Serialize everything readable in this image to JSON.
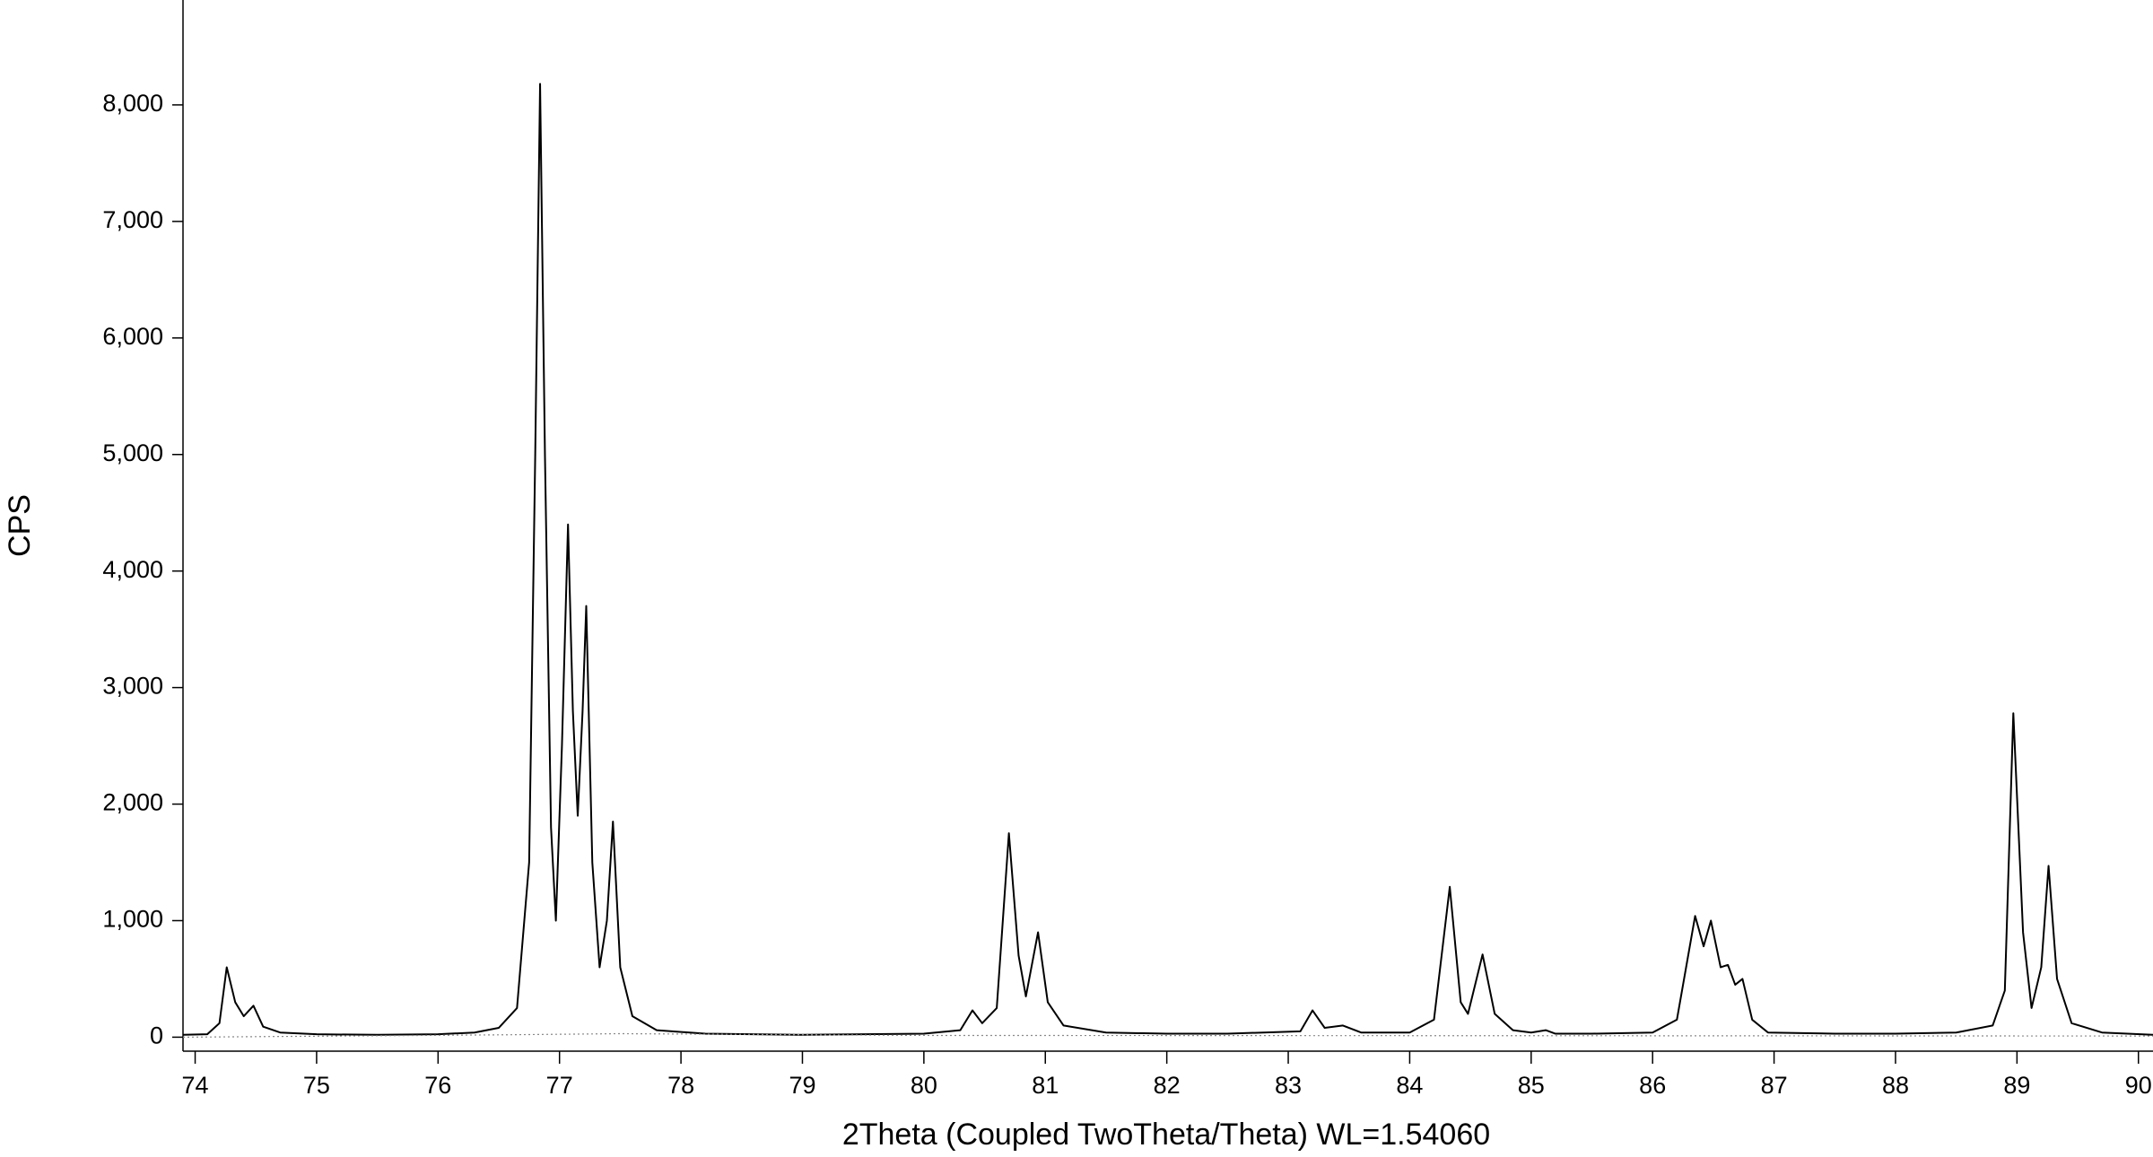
{
  "chart_data": {
    "type": "line",
    "x_label": "2Theta (Coupled TwoTheta/Theta) WL=1.54060",
    "y_label": "CPS",
    "xlim": [
      73.9,
      90.12
    ],
    "ylim": [
      -120,
      8900
    ],
    "xticks": [
      74,
      75,
      76,
      77,
      78,
      79,
      80,
      81,
      82,
      83,
      84,
      85,
      86,
      87,
      88,
      89,
      90
    ],
    "yticks": [
      0,
      {
        "value": 1000,
        "label": "1,000"
      },
      {
        "value": 2000,
        "label": "2,000"
      },
      {
        "value": 3000,
        "label": "3,000"
      },
      {
        "value": 4000,
        "label": "4,000"
      },
      {
        "value": 5000,
        "label": "5,000"
      },
      {
        "value": 6000,
        "label": "6,000"
      },
      {
        "value": 7000,
        "label": "7,000"
      },
      {
        "value": 8000,
        "label": "8,000"
      }
    ],
    "series": [
      {
        "color": "#000000",
        "x": [
          73.9,
          74.1,
          74.2,
          74.26,
          74.33,
          74.4,
          74.48,
          74.56,
          74.7,
          75,
          75.5,
          76,
          76.3,
          76.5,
          76.65,
          76.75,
          76.8,
          76.84,
          76.88,
          76.93,
          76.97,
          77.02,
          77.07,
          77.11,
          77.15,
          77.19,
          77.22,
          77.27,
          77.33,
          77.39,
          77.44,
          77.5,
          77.6,
          77.8,
          78.2,
          79,
          80,
          80.3,
          80.4,
          80.48,
          80.6,
          80.7,
          80.78,
          80.84,
          80.94,
          81.02,
          81.15,
          81.5,
          82,
          82.5,
          83.1,
          83.2,
          83.3,
          83.45,
          83.6,
          84,
          84.2,
          84.33,
          84.42,
          84.48,
          84.6,
          84.7,
          84.85,
          85,
          85.12,
          85.2,
          85.5,
          86,
          86.2,
          86.35,
          86.42,
          86.48,
          86.56,
          86.62,
          86.68,
          86.74,
          86.82,
          86.95,
          87.5,
          88,
          88.5,
          88.8,
          88.9,
          88.97,
          89.05,
          89.12,
          89.2,
          89.26,
          89.33,
          89.45,
          89.7,
          90.12
        ],
        "values": [
          20,
          25,
          120,
          600,
          300,
          180,
          270,
          90,
          40,
          25,
          20,
          25,
          40,
          80,
          250,
          1500,
          5000,
          8180,
          5000,
          1800,
          1000,
          2500,
          4400,
          2800,
          1900,
          2800,
          3700,
          1500,
          600,
          1000,
          1850,
          600,
          180,
          60,
          30,
          20,
          30,
          60,
          230,
          120,
          250,
          1750,
          700,
          350,
          900,
          300,
          100,
          40,
          30,
          30,
          50,
          230,
          80,
          100,
          40,
          40,
          150,
          1290,
          300,
          200,
          710,
          200,
          60,
          40,
          60,
          30,
          30,
          40,
          150,
          1040,
          780,
          1000,
          600,
          620,
          450,
          500,
          150,
          40,
          30,
          30,
          40,
          100,
          400,
          2780,
          900,
          250,
          600,
          1470,
          500,
          120,
          40,
          20
        ]
      },
      {
        "color": "#888888",
        "style": "dotted",
        "x": [
          73.9,
          76.5,
          77.5,
          80,
          90.12
        ],
        "values": [
          0,
          20,
          30,
          15,
          10
        ]
      }
    ]
  }
}
